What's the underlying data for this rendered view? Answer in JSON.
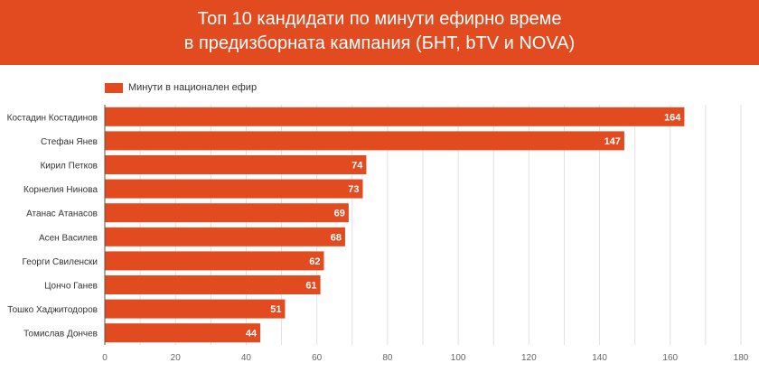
{
  "header": {
    "title_line1": "Топ 10 кандидати по минути ефирно време",
    "title_line2": "в предизборната кампания (БНТ, bTV и NOVA)"
  },
  "colors": {
    "banner": "#e14b1f",
    "bar": "#e14b1f",
    "grid": "#e0e0e0",
    "axis": "#555555"
  },
  "chart_data": {
    "type": "bar",
    "orientation": "horizontal",
    "title": "Топ 10 кандидати по минути ефирно време в предизборната кампания (БНТ, bTV и NOVA)",
    "xlabel": "",
    "ylabel": "",
    "xlim": [
      0,
      180
    ],
    "xticks": [
      0,
      20,
      40,
      60,
      80,
      100,
      120,
      140,
      160,
      180
    ],
    "xtick_labels": [
      "0",
      "20",
      "40",
      "60",
      "80",
      "100",
      "120",
      "140",
      "160",
      "180"
    ],
    "minor_grid_step": 10,
    "grid": true,
    "legend": {
      "position": "top-left",
      "entries": [
        "Минути в национален ефир"
      ]
    },
    "categories": [
      "Костадин Костадинов",
      "Стефан Янев",
      "Кирил Петков",
      "Корнелия Нинова",
      "Атанас Атанасов",
      "Асен Василев",
      "Георги Свиленски",
      "Цончо Ганев",
      "Тошко Хаджитодоров",
      "Томислав Дончев"
    ],
    "series": [
      {
        "name": "Минути в национален ефир",
        "values": [
          164,
          147,
          74,
          73,
          69,
          68,
          62,
          61,
          51,
          44
        ]
      }
    ]
  }
}
